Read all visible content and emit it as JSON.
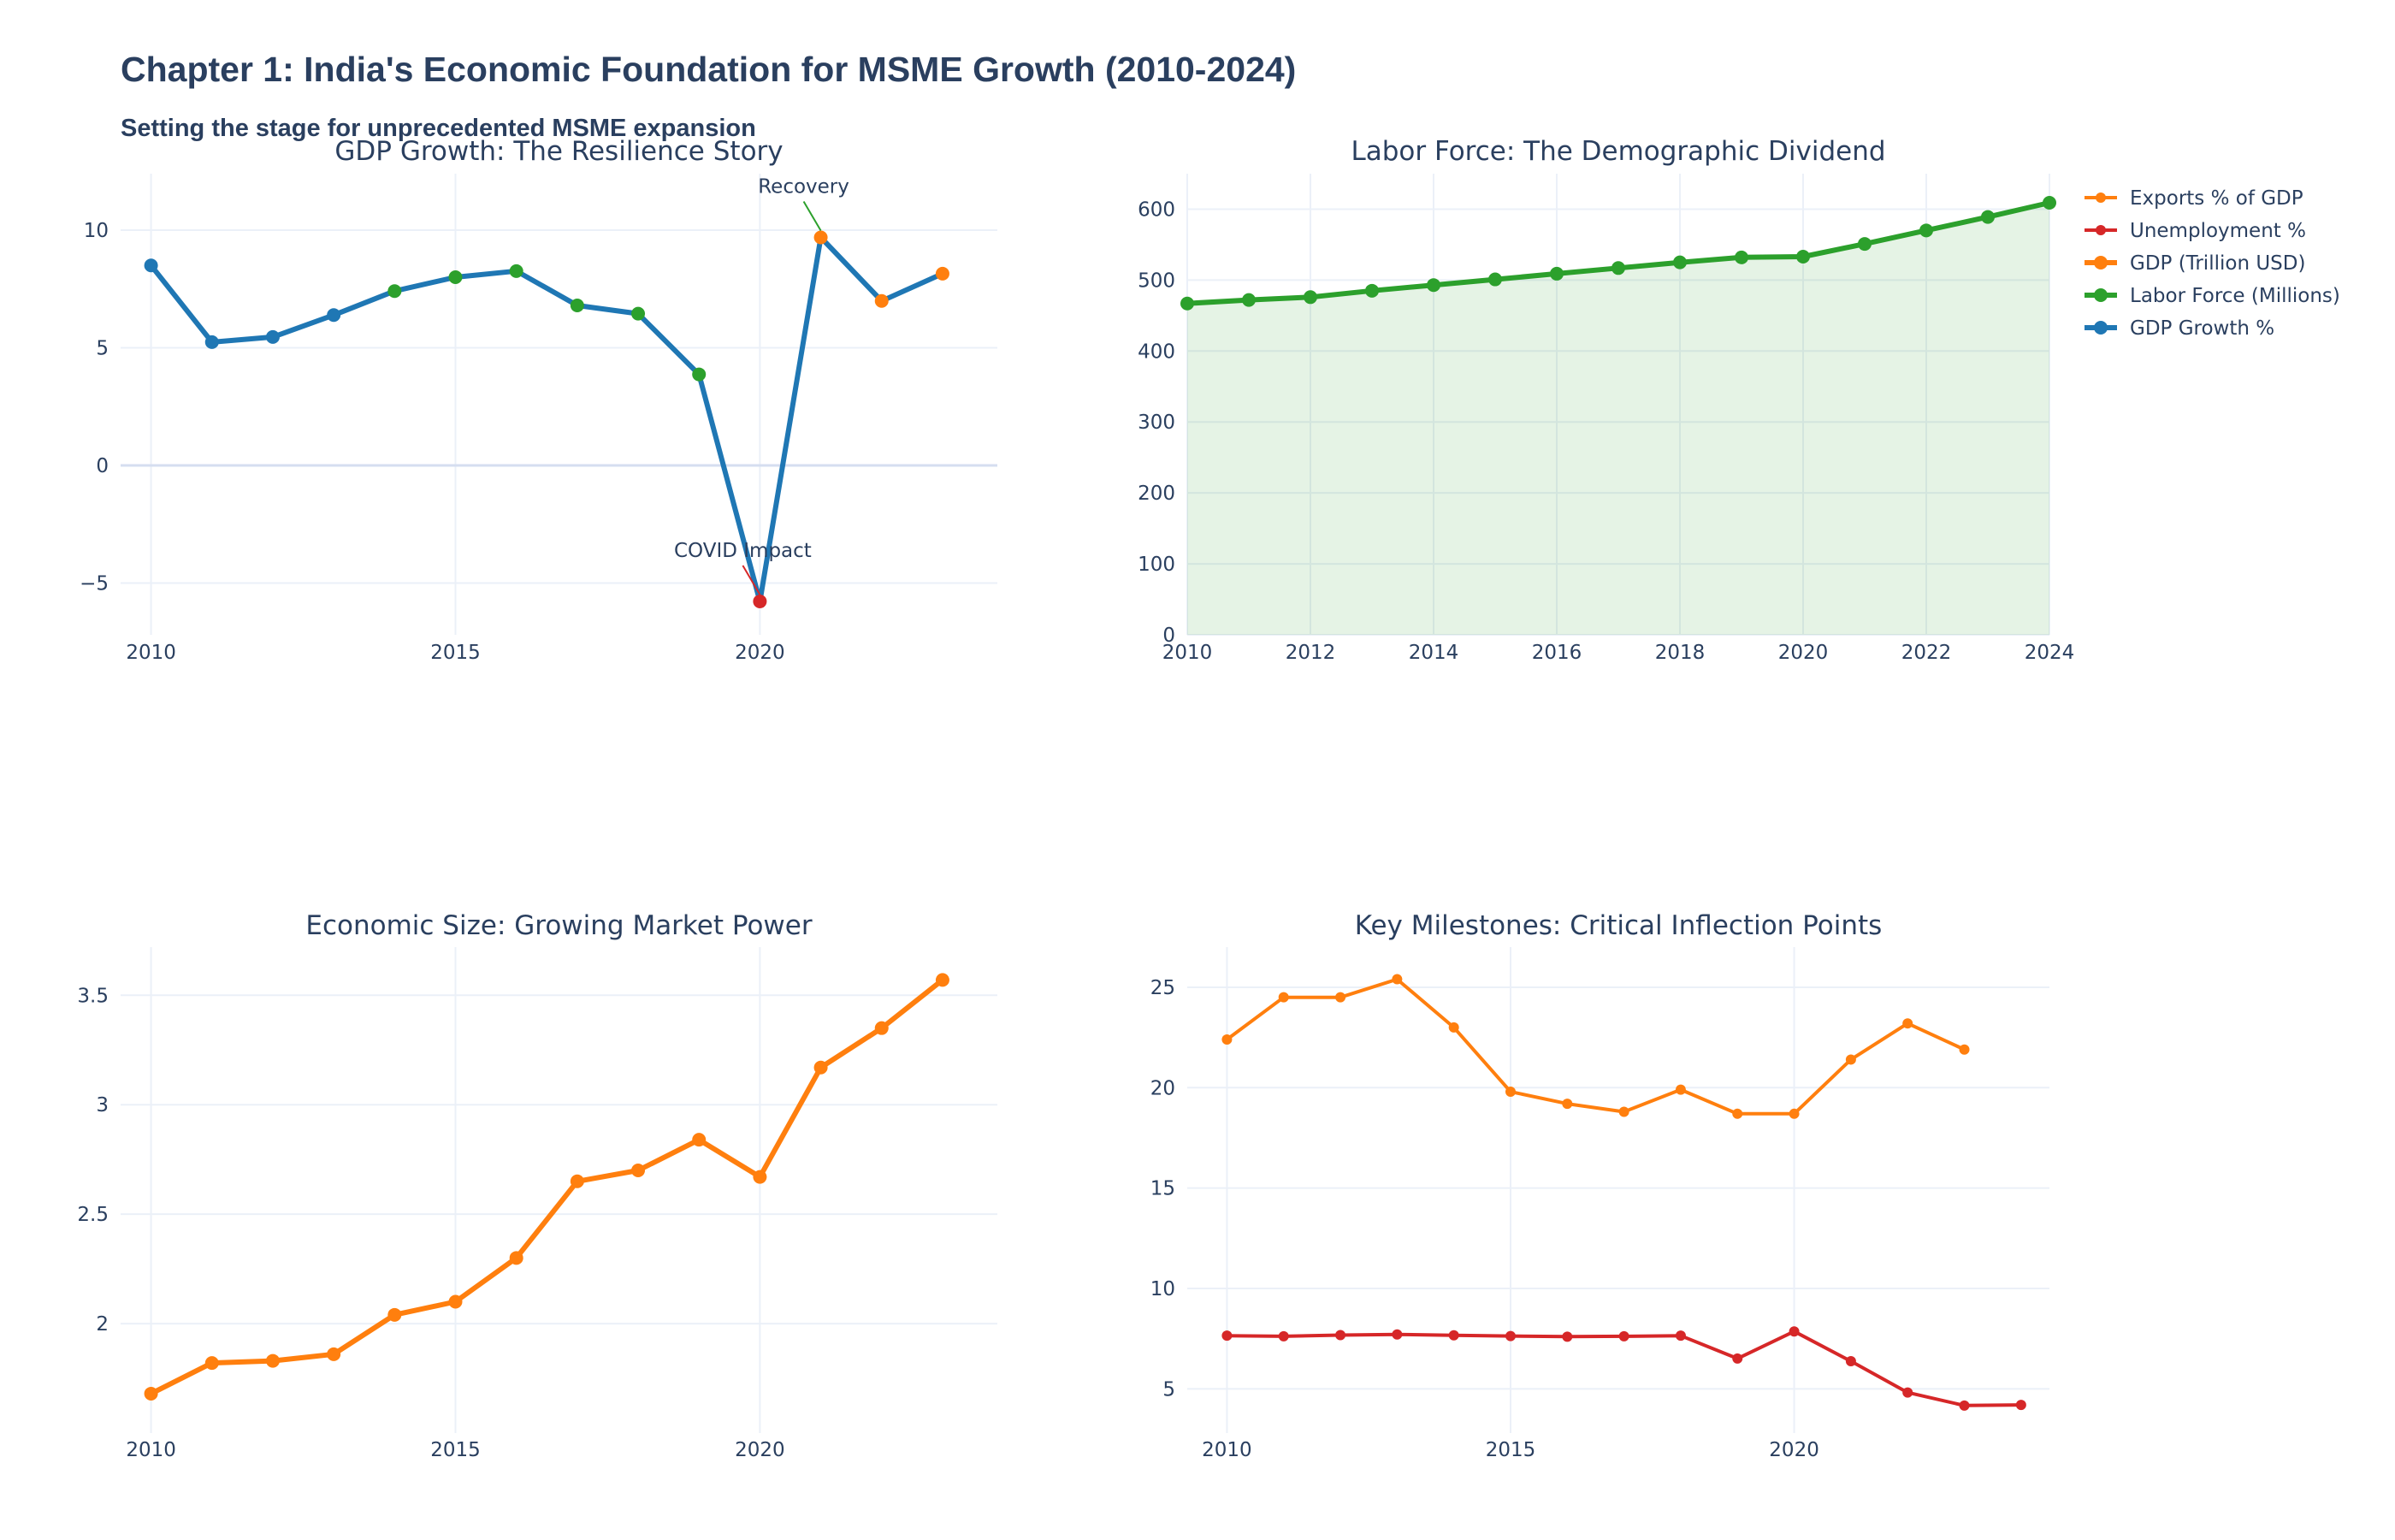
{
  "title": "Chapter 1: India's Economic Foundation for MSME Growth (2010-2024)",
  "subtitle": "Setting the stage for unprecedented MSME expansion",
  "colors": {
    "blue": "#1f77b4",
    "green": "#2ca02c",
    "orange": "#ff7f0e",
    "red": "#d62728",
    "grid": "#ebf0f8",
    "text": "#2a3f5f"
  },
  "legend": {
    "position": "top-right",
    "entries": [
      {
        "label": "Exports % of GDP",
        "color": "#ff7f0e"
      },
      {
        "label": "Unemployment %",
        "color": "#d62728"
      },
      {
        "label": "GDP (Trillion USD)",
        "color": "#ff7f0e"
      },
      {
        "label": "Labor Force (Millions)",
        "color": "#2ca02c"
      },
      {
        "label": "GDP Growth %",
        "color": "#1f77b4"
      }
    ]
  },
  "chart_data": [
    {
      "type": "line",
      "title": "GDP Growth: The Resilience Story",
      "xlim": [
        2009.5,
        2023.9
      ],
      "ylim": [
        -7.2,
        12.4
      ],
      "xticks": [
        2010,
        2015,
        2020
      ],
      "yticks": [
        10,
        5,
        0,
        -5
      ],
      "ytick_labels": [
        "10",
        "5",
        "0",
        "−5"
      ],
      "grid": true,
      "series": [
        {
          "name": "GDP Growth %",
          "color": "#1f77b4",
          "x": [
            2010,
            2011,
            2012,
            2013,
            2014,
            2015,
            2016,
            2017,
            2018,
            2019,
            2020,
            2021,
            2022,
            2023
          ],
          "y": [
            8.5,
            5.24,
            5.46,
            6.39,
            7.41,
            8.0,
            8.26,
            6.8,
            6.45,
            3.87,
            -5.78,
            9.69,
            6.99,
            8.15
          ],
          "marker_colors": [
            "#1f77b4",
            "#1f77b4",
            "#1f77b4",
            "#1f77b4",
            "#2ca02c",
            "#2ca02c",
            "#2ca02c",
            "#2ca02c",
            "#2ca02c",
            "#2ca02c",
            "#d62728",
            "#ff7f0e",
            "#ff7f0e",
            "#ff7f0e"
          ]
        }
      ],
      "annotations": [
        {
          "text": "Recovery",
          "x": 2021,
          "y": 9.69
        },
        {
          "text": "COVID Impact",
          "x": 2020,
          "y": -5.78
        }
      ]
    },
    {
      "type": "area",
      "title": "Labor Force: The Demographic Dividend",
      "xlim": [
        2010,
        2024
      ],
      "ylim": [
        0,
        650
      ],
      "xticks": [
        2010,
        2012,
        2014,
        2016,
        2018,
        2020,
        2022,
        2024
      ],
      "yticks": [
        0,
        100,
        200,
        300,
        400,
        500,
        600
      ],
      "grid": true,
      "series": [
        {
          "name": "Labor Force (Millions)",
          "color": "#2ca02c",
          "x": [
            2010,
            2011,
            2012,
            2013,
            2014,
            2015,
            2016,
            2017,
            2018,
            2019,
            2020,
            2021,
            2022,
            2023,
            2024
          ],
          "y": [
            467,
            472,
            476,
            485,
            493,
            501,
            509,
            517,
            525,
            532,
            533,
            551,
            570,
            589,
            609
          ]
        }
      ]
    },
    {
      "type": "line",
      "title": "Economic Size: Growing Market Power",
      "xlim": [
        2009.5,
        2023.9
      ],
      "ylim": [
        1.5,
        3.72
      ],
      "xticks": [
        2010,
        2015,
        2020
      ],
      "yticks": [
        2,
        2.5,
        3,
        3.5
      ],
      "grid": true,
      "series": [
        {
          "name": "GDP (Trillion USD)",
          "color": "#ff7f0e",
          "x": [
            2010,
            2011,
            2012,
            2013,
            2014,
            2015,
            2016,
            2017,
            2018,
            2019,
            2020,
            2021,
            2022,
            2023
          ],
          "y": [
            1.68,
            1.82,
            1.83,
            1.86,
            2.04,
            2.1,
            2.3,
            2.65,
            2.7,
            2.84,
            2.67,
            3.17,
            3.35,
            3.57
          ]
        }
      ]
    },
    {
      "type": "line",
      "title": "Key Milestones: Critical Inflection Points",
      "xlim": [
        2009.3,
        2024.5
      ],
      "ylim": [
        2.8,
        27.0
      ],
      "xticks": [
        2010,
        2015,
        2020
      ],
      "yticks": [
        5,
        10,
        15,
        20,
        25
      ],
      "grid": true,
      "series": [
        {
          "name": "Exports % of GDP",
          "color": "#ff7f0e",
          "x": [
            2010,
            2011,
            2012,
            2013,
            2014,
            2015,
            2016,
            2017,
            2018,
            2019,
            2020,
            2021,
            2022,
            2023
          ],
          "y": [
            22.4,
            24.5,
            24.5,
            25.4,
            23.0,
            19.8,
            19.2,
            18.8,
            19.9,
            18.7,
            18.7,
            21.4,
            23.2,
            21.9
          ]
        },
        {
          "name": "Unemployment %",
          "color": "#d62728",
          "x": [
            2010,
            2011,
            2012,
            2013,
            2014,
            2015,
            2016,
            2017,
            2018,
            2019,
            2020,
            2021,
            2022,
            2023,
            2024
          ],
          "y": [
            7.65,
            7.62,
            7.68,
            7.71,
            7.67,
            7.63,
            7.6,
            7.62,
            7.65,
            6.51,
            7.86,
            6.38,
            4.82,
            4.17,
            4.2
          ]
        }
      ]
    }
  ]
}
